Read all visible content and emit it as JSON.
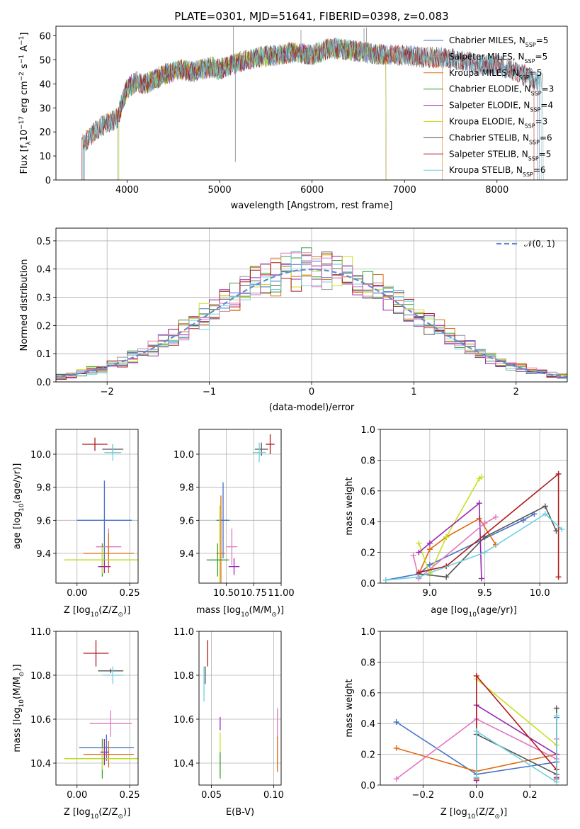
{
  "chart_data": [
    {
      "id": "spectrum",
      "type": "line",
      "title": "PLATE=0301, MJD=51641, FIBERID=0398, z=0.083",
      "xlabel": "wavelength [Angstrom, rest frame]",
      "ylabel_parts": [
        "Flux [f",
        "λ",
        "10",
        "−17",
        " erg cm",
        "−2",
        " s",
        "−1",
        " A",
        "−1",
        "]"
      ],
      "xlim": [
        3230,
        8760
      ],
      "ylim": [
        0,
        64
      ],
      "xticks": [
        4000,
        5000,
        6000,
        7000,
        8000
      ],
      "yticks": [
        0,
        10,
        20,
        30,
        40,
        50,
        60
      ],
      "grid": false,
      "legend_position": "upper-right",
      "continuum": {
        "x": [
          3500,
          3600,
          3700,
          3800,
          3900,
          3950,
          4000,
          4100,
          4200,
          4300,
          4400,
          4500,
          4600,
          4700,
          4800,
          4900,
          5000,
          5200,
          5400,
          5600,
          5800,
          6000,
          6200,
          6400,
          6600,
          6800,
          7000,
          7200,
          7400,
          7600,
          7800,
          8000,
          8200,
          8400
        ],
        "y": [
          14,
          18,
          22,
          24,
          26,
          33,
          38,
          41,
          40,
          42,
          44,
          45,
          46,
          45,
          46,
          47,
          46,
          49,
          51,
          52,
          53,
          52,
          55,
          54,
          53,
          52,
          52,
          51,
          51,
          50,
          48,
          48,
          45,
          42
        ]
      },
      "features": [
        {
          "x": 5150,
          "y": 63.8
        },
        {
          "x": 5170,
          "y": 7.5
        },
        {
          "x": 5880,
          "y": 62.5
        },
        {
          "x": 6562,
          "y": 63.2
        },
        {
          "x": 6590,
          "y": 63.5
        }
      ],
      "series": [
        {
          "name_parts": [
            "Chabrier MILES, N",
            "SSP",
            "=5"
          ],
          "color": "#4472C4",
          "start": 3530,
          "end": 8460
        },
        {
          "name_parts": [
            "Salpeter MILES, N",
            "SSP",
            "=5"
          ],
          "color": "#9A9A9A",
          "start": 3540,
          "end": 8500
        },
        {
          "name_parts": [
            "Kroupa MILES, N",
            "SSP",
            "=5"
          ],
          "color": "#E06A10",
          "start": 3520,
          "end": 7410
        },
        {
          "name_parts": [
            "Chabrier ELODIE, N",
            "SSP",
            "=3"
          ],
          "color": "#3B9A3B",
          "start": 3900,
          "end": 6800
        },
        {
          "name_parts": [
            "Salpeter ELODIE, N",
            "SSP",
            "=4"
          ],
          "color": "#9A27B0",
          "start": 3910,
          "end": 6800
        },
        {
          "name_parts": [
            "Kroupa ELODIE, N",
            "SSP",
            "=3"
          ],
          "color": "#C8E020",
          "start": 3910,
          "end": 6800
        },
        {
          "name_parts": [
            "Chabrier STELIB, N",
            "SSP",
            "=6"
          ],
          "color": "#555555",
          "start": 3520,
          "end": 8440
        },
        {
          "name_parts": [
            "Salpeter STELIB, N",
            "SSP",
            "=5"
          ],
          "color": "#B01A1A",
          "start": 3510,
          "end": 8400
        },
        {
          "name_parts": [
            "Kroupa STELIB, N",
            "SSP",
            "=6"
          ],
          "color": "#70D0E0",
          "start": 3520,
          "end": 8480
        }
      ]
    },
    {
      "id": "residuals",
      "type": "histogram",
      "xlabel": "(data-model)/error",
      "ylabel": "Normed distribution",
      "xlim": [
        -2.5,
        2.5
      ],
      "ylim": [
        0,
        0.545
      ],
      "xticks": [
        -2,
        -1,
        0,
        1,
        2
      ],
      "xtick_labels": [
        "−2",
        "−1",
        "0",
        "1",
        "2"
      ],
      "yticks": [
        0,
        0.1,
        0.2,
        0.3,
        0.4,
        0.5
      ],
      "ytick_labels": [
        "0.0",
        "0.1",
        "0.2",
        "0.3",
        "0.4",
        "0.5"
      ],
      "grid": true,
      "legend_position": "upper-right",
      "reference": {
        "name": "𝒩(0, 1)",
        "color": "#5B8DD6",
        "mean": 0,
        "sigma": 1
      },
      "bin_width": 0.1,
      "series_colors": [
        "#4472C4",
        "#9A9A9A",
        "#E06A10",
        "#3B9A3B",
        "#9A27B0",
        "#C8E020",
        "#555555",
        "#B01A1A",
        "#70D0E0",
        "#E377C2"
      ]
    },
    {
      "id": "age-vs-Z",
      "type": "scatter",
      "xlabel_parts": [
        "Z [log",
        "10",
        "(Z/Z",
        "⊙",
        ")]"
      ],
      "ylabel_parts": [
        "age  [log",
        "10",
        "(age/yr)]"
      ],
      "xlim": [
        -0.1,
        0.29
      ],
      "ylim": [
        9.22,
        10.15
      ],
      "xticks": [
        0,
        0.25
      ],
      "xtick_labels": [
        "0.00",
        "0.25"
      ],
      "yticks": [
        9.4,
        9.6,
        9.8,
        10.0
      ],
      "ytick_labels": [
        "9.4",
        "9.6",
        "9.8",
        "10.0"
      ],
      "grid": true,
      "points": [
        {
          "x": 0.085,
          "y": 10.06,
          "xerr": 0.06,
          "yerr": 0.04,
          "color": "#B01A1A"
        },
        {
          "x": 0.17,
          "y": 10.03,
          "xerr": 0.05,
          "yerr": 0.03,
          "color": "#555555"
        },
        {
          "x": 0.17,
          "y": 10.01,
          "xerr": 0.04,
          "yerr": 0.05,
          "color": "#70D0E0"
        },
        {
          "x": 0.13,
          "y": 9.6,
          "xerr": 0.13,
          "yerr": 0.24,
          "color": "#4472C4"
        },
        {
          "x": 0.15,
          "y": 9.44,
          "xerr": 0.06,
          "yerr": 0.11,
          "color": "#E377C2"
        },
        {
          "x": 0.15,
          "y": 9.4,
          "xerr": 0.12,
          "yerr": 0.12,
          "color": "#E06A10"
        },
        {
          "x": 0.12,
          "y": 9.36,
          "xerr": 0.18,
          "yerr": 0.1,
          "color": "#3B9A3B"
        },
        {
          "x": 0.12,
          "y": 9.36,
          "xerr": 0.18,
          "yerr": 0.08,
          "color": "#C8E020"
        },
        {
          "x": 0.13,
          "y": 9.32,
          "xerr": 0.03,
          "yerr": 0.04,
          "color": "#9A27B0"
        }
      ]
    },
    {
      "id": "age-vs-mass",
      "type": "scatter",
      "xlabel_parts": [
        "mass [log",
        "10",
        "(M/M",
        "⊙",
        ")]"
      ],
      "xlim": [
        10.25,
        11.0
      ],
      "ylim": [
        9.22,
        10.15
      ],
      "xticks": [
        10.5,
        10.75,
        11.0
      ],
      "xtick_labels": [
        "10.50",
        "10.75",
        "11.00"
      ],
      "yticks": [
        9.4,
        9.6,
        9.8,
        10.0
      ],
      "ytick_labels": [
        "9.4",
        "9.6",
        "9.8",
        "10.0"
      ],
      "grid": true,
      "points": [
        {
          "x": 10.9,
          "y": 10.06,
          "xerr": 0.04,
          "yerr": 0.06,
          "color": "#B01A1A"
        },
        {
          "x": 10.82,
          "y": 10.03,
          "xerr": 0.06,
          "yerr": 0.04,
          "color": "#555555"
        },
        {
          "x": 10.8,
          "y": 10.01,
          "xerr": 0.06,
          "yerr": 0.06,
          "color": "#70D0E0"
        },
        {
          "x": 10.47,
          "y": 9.6,
          "xerr": 0.06,
          "yerr": 0.23,
          "color": "#4472C4"
        },
        {
          "x": 10.55,
          "y": 9.44,
          "xerr": 0.05,
          "yerr": 0.11,
          "color": "#E377C2"
        },
        {
          "x": 10.45,
          "y": 9.4,
          "xerr": 0.04,
          "yerr": 0.35,
          "color": "#E06A10"
        },
        {
          "x": 10.44,
          "y": 9.36,
          "xerr": 0.09,
          "yerr": 0.33,
          "color": "#C8E020"
        },
        {
          "x": 10.42,
          "y": 9.36,
          "xerr": 0.1,
          "yerr": 0.1,
          "color": "#3B9A3B"
        },
        {
          "x": 10.57,
          "y": 9.32,
          "xerr": 0.05,
          "yerr": 0.05,
          "color": "#9A27B0"
        }
      ]
    },
    {
      "id": "weight-vs-age",
      "type": "line",
      "xlabel_parts": [
        "age  [log",
        "10",
        "(age/yr)]"
      ],
      "ylabel": "mass weight",
      "xlim": [
        8.55,
        10.25
      ],
      "ylim": [
        0,
        1.0
      ],
      "xticks": [
        9.0,
        9.5,
        10.0
      ],
      "xtick_labels": [
        "9.0",
        "9.5",
        "10.0"
      ],
      "yticks": [
        0,
        0.2,
        0.4,
        0.6,
        0.8,
        1.0
      ],
      "ytick_labels": [
        "0.0",
        "0.2",
        "0.4",
        "0.6",
        "0.8",
        "1.0"
      ],
      "grid": true,
      "series": [
        {
          "color": "#4472C4",
          "x": [
            8.6,
            8.9,
            9.0,
            9.85,
            9.95
          ],
          "y": [
            0.02,
            0.06,
            0.12,
            0.41,
            0.45
          ]
        },
        {
          "color": "#E06A10",
          "x": [
            8.9,
            9.0,
            9.15,
            9.45,
            9.6
          ],
          "y": [
            0.06,
            0.22,
            0.3,
            0.42,
            0.25
          ]
        },
        {
          "color": "#C8E020",
          "x": [
            8.9,
            9.0,
            9.15,
            9.45,
            9.47
          ],
          "y": [
            0.26,
            0.06,
            0.3,
            0.68,
            0.69
          ]
        },
        {
          "color": "#9A27B0",
          "x": [
            8.9,
            9.0,
            9.45,
            9.47
          ],
          "y": [
            0.2,
            0.26,
            0.52,
            0.03
          ]
        },
        {
          "color": "#E377C2",
          "x": [
            8.85,
            8.9,
            9.5,
            9.6
          ],
          "y": [
            0.18,
            0.03,
            0.39,
            0.43
          ]
        },
        {
          "color": "#555555",
          "x": [
            8.9,
            9.15,
            9.5,
            10.05,
            10.15
          ],
          "y": [
            0.06,
            0.04,
            0.3,
            0.5,
            0.34
          ]
        },
        {
          "color": "#B01A1A",
          "x": [
            8.9,
            9.15,
            10.17,
            10.17
          ],
          "y": [
            0.07,
            0.11,
            0.71,
            0.04
          ]
        },
        {
          "color": "#70D0E0",
          "x": [
            8.6,
            8.9,
            9.5,
            10.05,
            10.2
          ],
          "y": [
            0.02,
            0.04,
            0.2,
            0.45,
            0.35
          ]
        }
      ]
    },
    {
      "id": "mass-vs-Z",
      "type": "scatter",
      "xlabel_parts": [
        "Z [log",
        "10",
        "(Z/Z",
        "⊙",
        ")]"
      ],
      "ylabel_parts": [
        "mass [log",
        "10",
        "(M/M",
        "⊙",
        ")]"
      ],
      "xlim": [
        -0.1,
        0.29
      ],
      "ylim": [
        10.3,
        11.0
      ],
      "xticks": [
        0,
        0.25
      ],
      "xtick_labels": [
        "0.00",
        "0.25"
      ],
      "yticks": [
        10.4,
        10.6,
        10.8,
        11.0
      ],
      "ytick_labels": [
        "10.4",
        "10.6",
        "10.8",
        "11.0"
      ],
      "grid": true,
      "points": [
        {
          "x": 0.09,
          "y": 10.9,
          "xerr": 0.06,
          "yerr": 0.06,
          "color": "#B01A1A"
        },
        {
          "x": 0.16,
          "y": 10.82,
          "xerr": 0.06,
          "yerr": 0.01,
          "color": "#555555"
        },
        {
          "x": 0.17,
          "y": 10.8,
          "xerr": 0.05,
          "yerr": 0.04,
          "color": "#70D0E0"
        },
        {
          "x": 0.16,
          "y": 10.58,
          "xerr": 0.1,
          "yerr": 0.06,
          "color": "#E377C2"
        },
        {
          "x": 0.14,
          "y": 10.47,
          "xerr": 0.13,
          "yerr": 0.06,
          "color": "#4472C4"
        },
        {
          "x": 0.15,
          "y": 10.44,
          "xerr": 0.12,
          "yerr": 0.06,
          "color": "#E06A10"
        },
        {
          "x": 0.12,
          "y": 10.42,
          "xerr": 0.18,
          "yerr": 0.09,
          "color": "#3B9A3B"
        },
        {
          "x": 0.12,
          "y": 10.42,
          "xerr": 0.18,
          "yerr": 0.05,
          "color": "#C8E020"
        },
        {
          "x": 0.13,
          "y": 10.45,
          "xerr": 0.02,
          "yerr": 0.06,
          "color": "#9A27B0"
        }
      ]
    },
    {
      "id": "mass-vs-ebv",
      "type": "scatter",
      "xlabel": "E(B-V)",
      "xlim": [
        0.04,
        0.106
      ],
      "ylim": [
        10.3,
        11.0
      ],
      "xticks": [
        0.05,
        0.1
      ],
      "xtick_labels": [
        "0.05",
        "0.10"
      ],
      "yticks": [
        10.4,
        10.6,
        10.8,
        11.0
      ],
      "ytick_labels": [
        "10.4",
        "10.6",
        "10.8",
        "11.0"
      ],
      "grid": true,
      "points": [
        {
          "x": 0.047,
          "y": 10.9,
          "xerr": 0,
          "yerr": 0.06,
          "color": "#B01A1A"
        },
        {
          "x": 0.045,
          "y": 10.8,
          "xerr": 0,
          "yerr": 0.04,
          "color": "#555555"
        },
        {
          "x": 0.044,
          "y": 10.76,
          "xerr": 0,
          "yerr": 0.08,
          "color": "#70D0E0"
        },
        {
          "x": 0.057,
          "y": 10.58,
          "xerr": 0,
          "yerr": 0.03,
          "color": "#9A27B0"
        },
        {
          "x": 0.057,
          "y": 10.44,
          "xerr": 0,
          "yerr": 0.1,
          "color": "#C8E020"
        },
        {
          "x": 0.057,
          "y": 10.39,
          "xerr": 0,
          "yerr": 0.06,
          "color": "#3B9A3B"
        },
        {
          "x": 0.103,
          "y": 10.58,
          "xerr": 0,
          "yerr": 0.07,
          "color": "#E377C2"
        },
        {
          "x": 0.103,
          "y": 10.44,
          "xerr": 0,
          "yerr": 0.08,
          "color": "#E06A10"
        }
      ]
    },
    {
      "id": "weight-vs-Z",
      "type": "line",
      "xlabel_parts": [
        "Z [log",
        "10",
        "(Z/Z",
        "⊙",
        ")]"
      ],
      "ylabel": "mass weight",
      "xlim": [
        -0.36,
        0.34
      ],
      "ylim": [
        0,
        1.0
      ],
      "xticks": [
        -0.2,
        0,
        0.2
      ],
      "xtick_labels": [
        "−0.2",
        "0.0",
        "0.2"
      ],
      "yticks": [
        0,
        0.2,
        0.4,
        0.6,
        0.8,
        1.0
      ],
      "ytick_labels": [
        "0.0",
        "0.2",
        "0.4",
        "0.6",
        "0.8",
        "1.0"
      ],
      "grid": true,
      "series": [
        {
          "color": "#4472C4",
          "x": [
            -0.3,
            0.0,
            0.3,
            0.3
          ],
          "y": [
            0.41,
            0.07,
            0.15,
            0.44
          ]
        },
        {
          "color": "#E06A10",
          "x": [
            -0.3,
            0.0,
            0.3
          ],
          "y": [
            0.24,
            0.09,
            0.2
          ]
        },
        {
          "color": "#E377C2",
          "x": [
            -0.3,
            0.0,
            0.3,
            0.3
          ],
          "y": [
            0.04,
            0.43,
            0.17,
            0.3
          ]
        },
        {
          "color": "#C8E020",
          "x": [
            0.0,
            0.3,
            0.3
          ],
          "y": [
            0.69,
            0.26,
            0.05
          ]
        },
        {
          "color": "#9A27B0",
          "x": [
            0.0,
            0.0,
            0.3,
            0.3
          ],
          "y": [
            0.03,
            0.52,
            0.2,
            0.05
          ]
        },
        {
          "color": "#555555",
          "x": [
            0.0,
            0.0,
            0.3,
            0.3
          ],
          "y": [
            0.05,
            0.33,
            0.07,
            0.5
          ]
        },
        {
          "color": "#B01A1A",
          "x": [
            0.0,
            0.0,
            0.3,
            0.3
          ],
          "y": [
            0.04,
            0.71,
            0.1,
            0.04
          ]
        },
        {
          "color": "#70D0E0",
          "x": [
            0.0,
            0.0,
            0.3,
            0.3
          ],
          "y": [
            0.05,
            0.35,
            0.02,
            0.45
          ]
        }
      ]
    }
  ]
}
